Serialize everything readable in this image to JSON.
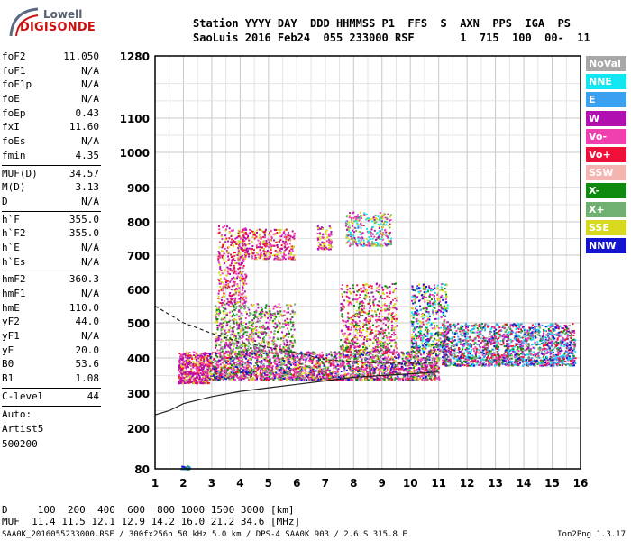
{
  "logo": {
    "line1": "Lowell",
    "line2": "DIGISONDE"
  },
  "header": {
    "line1": "Station YYYY DAY  DDD HHMMSS P1  FFS  S  AXN  PPS  IGA  PS",
    "line2": "SaoLuis 2016 Feb24  055 233000 RSF       1  715  100  00-  11"
  },
  "params_a": [
    {
      "label": "foF2",
      "value": "11.050"
    },
    {
      "label": "foF1",
      "value": "N/A"
    },
    {
      "label": "foF1p",
      "value": "N/A"
    },
    {
      "label": "foE",
      "value": "N/A"
    },
    {
      "label": "foEp",
      "value": "0.43"
    },
    {
      "label": "fxI",
      "value": "11.60"
    },
    {
      "label": "foEs",
      "value": "N/A"
    },
    {
      "label": "fmin",
      "value": "4.35"
    }
  ],
  "params_b": [
    {
      "label": "MUF(D)",
      "value": "34.57"
    },
    {
      "label": "M(D)",
      "value": "3.13"
    },
    {
      "label": "D",
      "value": "N/A"
    }
  ],
  "params_c": [
    {
      "label": "h`F",
      "value": "355.0"
    },
    {
      "label": "h`F2",
      "value": "355.0"
    },
    {
      "label": "h`E",
      "value": "N/A"
    },
    {
      "label": "h`Es",
      "value": "N/A"
    }
  ],
  "params_d": [
    {
      "label": "hmF2",
      "value": "360.3"
    },
    {
      "label": "hmF1",
      "value": "N/A"
    },
    {
      "label": "hmE",
      "value": "110.0"
    },
    {
      "label": "yF2",
      "value": "44.0"
    },
    {
      "label": "yF1",
      "value": "N/A"
    },
    {
      "label": "yE",
      "value": "20.0"
    },
    {
      "label": "B0",
      "value": "53.6"
    },
    {
      "label": "B1",
      "value": "1.08"
    }
  ],
  "params_e": [
    {
      "label": "C-level",
      "value": "44"
    }
  ],
  "auto": {
    "line1": "Auto:",
    "line2": "Artist5",
    "line3": "500200"
  },
  "legend": [
    {
      "label": "NoVal",
      "color": "#a8a8a8"
    },
    {
      "label": "NNE",
      "color": "#12e6f0"
    },
    {
      "label": "E",
      "color": "#3aa0f0"
    },
    {
      "label": "W",
      "color": "#b010b0"
    },
    {
      "label": "Vo-",
      "color": "#f040b0"
    },
    {
      "label": "Vo+",
      "color": "#ee1038"
    },
    {
      "label": "SSW",
      "color": "#f4b4b0"
    },
    {
      "label": "X-",
      "color": "#0e8a0e"
    },
    {
      "label": "X+",
      "color": "#70b070"
    },
    {
      "label": "SSE",
      "color": "#d8d81e"
    },
    {
      "label": "NNW",
      "color": "#1414d0"
    }
  ],
  "bottom": {
    "line1": "D     100  200  400  600  800 1000 1500 3000 [km]",
    "line2": "MUF  11.4 11.5 12.1 12.9 14.2 16.0 21.2 34.6 [MHz]"
  },
  "footer": {
    "left": "SAA0K_2016055233000.RSF / 300fx256h 50 kHz 5.0 km / DPS-4 SAA0K 903 / 2.6 S 315.8 E",
    "right": "Ion2Png 1.3.17"
  },
  "chart_data": {
    "type": "scatter",
    "x_ticks": [
      1,
      2,
      3,
      4,
      5,
      6,
      7,
      8,
      9,
      10,
      11,
      12,
      13,
      14,
      15,
      16
    ],
    "y_ticks": [
      80,
      200,
      300,
      400,
      500,
      600,
      700,
      800,
      900,
      1000,
      1100,
      1280
    ],
    "xlim": [
      1,
      16
    ],
    "y_scale": "nonlinear",
    "grid": true,
    "clusters": [
      {
        "x": [
          1.9,
          2.2
        ],
        "y": [
          80,
          90
        ],
        "n": 40,
        "colors": [
          "#1414d0",
          "#0e8a0e",
          "#3aa0f0"
        ]
      },
      {
        "x": [
          1.8,
          2.9
        ],
        "y": [
          330,
          420
        ],
        "n": 500,
        "colors": [
          "#b010b0",
          "#f040b0",
          "#ee1038",
          "#d8d81e",
          "#b010b0"
        ]
      },
      {
        "x": [
          2.9,
          11.0
        ],
        "y": [
          340,
          420
        ],
        "n": 2400,
        "colors": [
          "#b010b0",
          "#f040b0",
          "#ee1038",
          "#d8d81e",
          "#0e8a0e",
          "#1414d0",
          "#70b070",
          "#f040b0"
        ]
      },
      {
        "x": [
          3.1,
          5.9
        ],
        "y": [
          420,
          560
        ],
        "n": 700,
        "colors": [
          "#d8d81e",
          "#b010b0",
          "#f040b0",
          "#0e8a0e",
          "#70b070"
        ]
      },
      {
        "x": [
          3.2,
          4.2
        ],
        "y": [
          560,
          790
        ],
        "n": 350,
        "colors": [
          "#b010b0",
          "#f040b0",
          "#d8d81e",
          "#ee1038"
        ]
      },
      {
        "x": [
          3.9,
          5.9
        ],
        "y": [
          690,
          780
        ],
        "n": 350,
        "colors": [
          "#d8d81e",
          "#b010b0",
          "#ee1038",
          "#f040b0"
        ]
      },
      {
        "x": [
          6.7,
          7.2
        ],
        "y": [
          720,
          790
        ],
        "n": 100,
        "colors": [
          "#b010b0",
          "#f040b0",
          "#d8d81e"
        ]
      },
      {
        "x": [
          7.7,
          9.3
        ],
        "y": [
          730,
          830
        ],
        "n": 300,
        "colors": [
          "#d8d81e",
          "#12e6f0",
          "#b010b0",
          "#f040b0",
          "#70b070"
        ]
      },
      {
        "x": [
          7.5,
          9.5
        ],
        "y": [
          420,
          620
        ],
        "n": 600,
        "colors": [
          "#d8d81e",
          "#b010b0",
          "#f040b0",
          "#ee1038",
          "#0e8a0e"
        ]
      },
      {
        "x": [
          10.0,
          11.3
        ],
        "y": [
          420,
          620
        ],
        "n": 500,
        "colors": [
          "#d8d81e",
          "#0e8a0e",
          "#12e6f0",
          "#b010b0",
          "#f040b0",
          "#1414d0"
        ]
      },
      {
        "x": [
          11.1,
          15.8
        ],
        "y": [
          380,
          500
        ],
        "n": 1700,
        "colors": [
          "#f040b0",
          "#b010b0",
          "#12e6f0",
          "#ee1038",
          "#3aa0f0",
          "#1414d0",
          "#70b070",
          "#0e8a0e"
        ]
      }
    ],
    "curves": [
      {
        "name": "",
        "x": [
          1.0,
          1.5,
          2.0,
          3.0,
          4.0,
          5.0,
          6.0,
          7.0,
          8.0,
          9.0,
          10.0,
          11.0
        ],
        "y": [
          238,
          250,
          270,
          290,
          305,
          315,
          325,
          335,
          345,
          350,
          355,
          360
        ]
      },
      {
        "name": "",
        "x": [
          1.0,
          2.0,
          3.0,
          4.0,
          5.0,
          6.0,
          7.0,
          8.0,
          9.0,
          10.0,
          10.8
        ],
        "y": [
          550,
          500,
          470,
          445,
          430,
          415,
          395,
          390,
          385,
          385,
          385
        ]
      }
    ]
  }
}
